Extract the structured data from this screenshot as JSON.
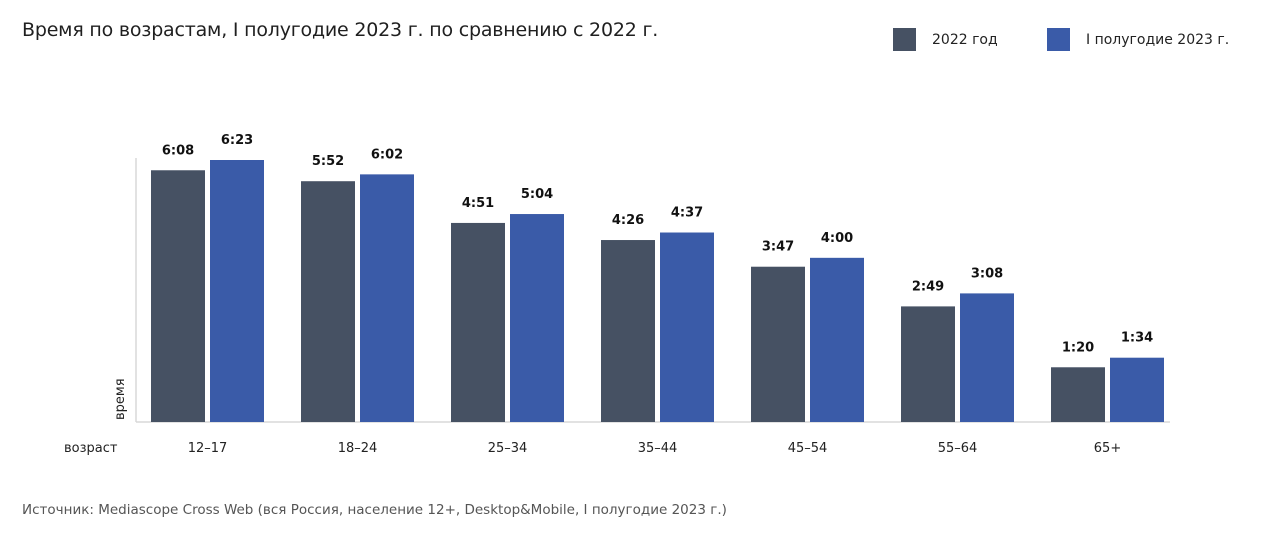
{
  "chart_data": {
    "type": "bar",
    "title": "Время по возрастам, I полугодие 2023 г. по сравнению с 2022 г.",
    "xlabel": "возраст",
    "ylabel": "время",
    "categories": [
      "12–17",
      "18–24",
      "25–34",
      "35–44",
      "45–54",
      "55–64",
      "65+"
    ],
    "series": [
      {
        "name": "2022 год",
        "color": "#465163",
        "values_minutes": [
          368,
          352,
          291,
          266,
          227,
          169,
          80
        ],
        "labels": [
          "6:08",
          "5:52",
          "4:51",
          "4:26",
          "3:47",
          "2:49",
          "1:20"
        ]
      },
      {
        "name": "I полугодие 2023 г.",
        "color": "#3a5ba8",
        "values_minutes": [
          383,
          362,
          304,
          277,
          240,
          188,
          94
        ],
        "labels": [
          "6:23",
          "6:02",
          "5:04",
          "4:37",
          "4:00",
          "3:08",
          "1:34"
        ]
      }
    ],
    "value_unit": "hours:minutes",
    "ylim_minutes": [
      0,
      383
    ],
    "grid": false,
    "legend": "top-right"
  },
  "source": "Источник: Mediascope Cross Web (вся Россия, население 12+, Desktop&Mobile, I полугодие 2023 г.)"
}
